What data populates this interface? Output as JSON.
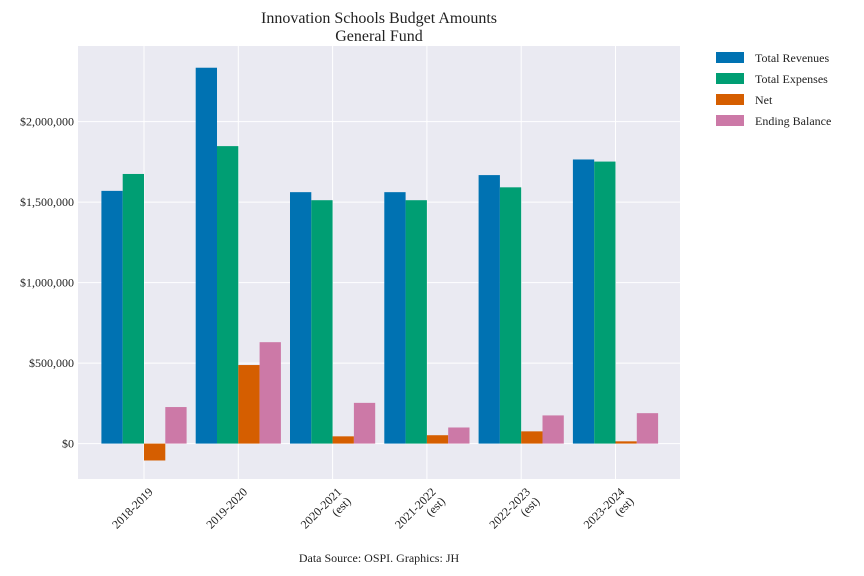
{
  "chart_data": {
    "type": "bar",
    "title": [
      "Innovation Schools Budget Amounts",
      "General Fund"
    ],
    "categories": [
      [
        "2018-2019"
      ],
      [
        "2019-2020"
      ],
      [
        "2020-2021",
        "(est)"
      ],
      [
        "2021-2022",
        "(est)"
      ],
      [
        "2022-2023",
        "(est)"
      ],
      [
        "2023-2024",
        "(est)"
      ]
    ],
    "series": [
      {
        "name": "Total Revenues",
        "color": "#0072b2",
        "values": [
          1570000,
          2335000,
          1562000,
          1562000,
          1668000,
          1765000
        ]
      },
      {
        "name": "Total Expenses",
        "color": "#009e73",
        "values": [
          1675000,
          1848000,
          1512000,
          1512000,
          1592000,
          1752000
        ]
      },
      {
        "name": "Net",
        "color": "#d55e00",
        "values": [
          -105000,
          488000,
          45000,
          52000,
          76000,
          14000
        ]
      },
      {
        "name": "Ending Balance",
        "color": "#cc79a7",
        "values": [
          227000,
          630000,
          253000,
          100000,
          175000,
          189000
        ]
      }
    ],
    "y_ticks": [
      0,
      500000,
      1000000,
      1500000,
      2000000
    ],
    "y_tick_labels": [
      "$0",
      "$500,000",
      "$1,000,000",
      "$1,500,000",
      "$2,000,000"
    ],
    "ylim": [
      -220000,
      2470000
    ],
    "grid": true,
    "legend_position": "outside-top-right",
    "plot_background": "#eaeaf2",
    "source": "Data Source: OSPI. Graphics: JH"
  }
}
